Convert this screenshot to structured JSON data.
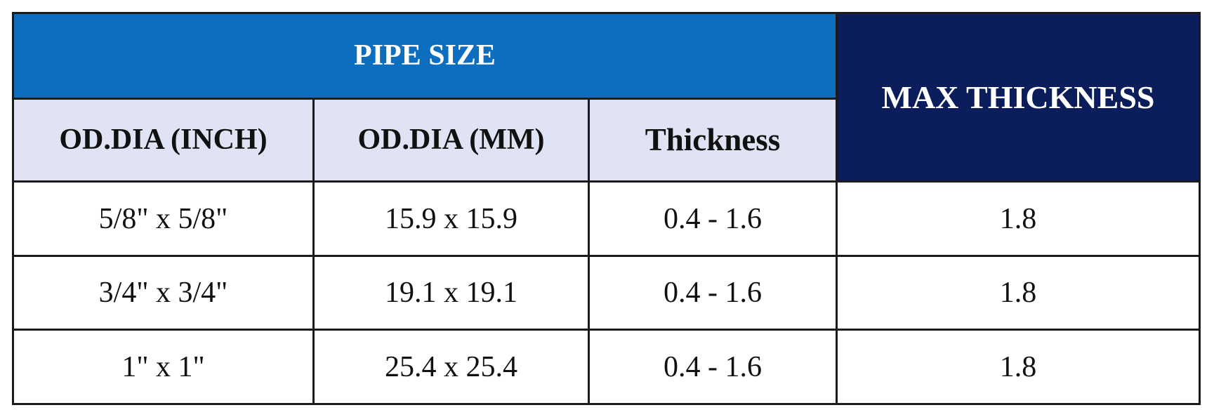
{
  "table": {
    "group_header": "PIPE SIZE",
    "max_header": "MAX THICKNESS",
    "columns": [
      "OD.DIA (INCH)",
      "OD.DIA (MM)",
      "Thickness"
    ],
    "rows": [
      [
        "5/8\" x 5/8\"",
        "15.9 x 15.9",
        "0.4 - 1.6",
        "1.8"
      ],
      [
        "3/4\" x 3/4\"",
        "19.1 x 19.1",
        "0.4 - 1.6",
        "1.8"
      ],
      [
        "1\" x 1\"",
        "25.4 x 25.4",
        "0.4 - 1.6",
        "1.8"
      ]
    ]
  },
  "colors": {
    "group_header_bg": "#0d6dbf",
    "max_header_bg": "#0b1e5b",
    "column_header_bg": "#dfe3f4",
    "border": "#1b1b1b"
  }
}
